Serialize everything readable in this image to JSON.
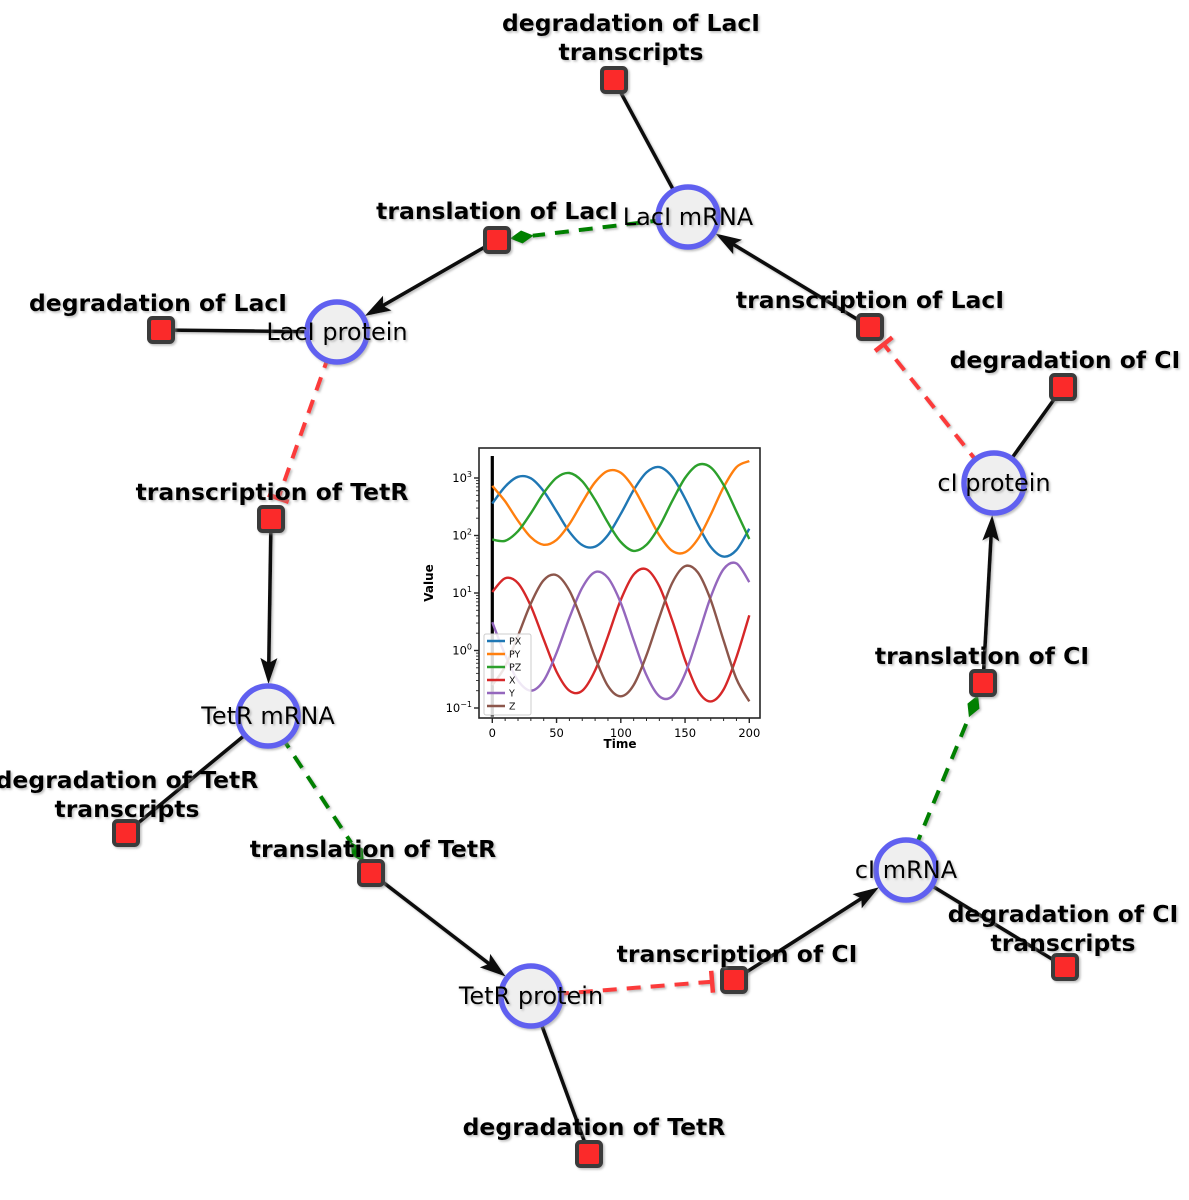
{
  "diagram": {
    "species": [
      {
        "id": "laci_mrna",
        "label": "LacI mRNA"
      },
      {
        "id": "laci_protein",
        "label": "LacI protein"
      },
      {
        "id": "tetr_mrna",
        "label": "TetR mRNA"
      },
      {
        "id": "tetr_protein",
        "label": "TetR protein"
      },
      {
        "id": "ci_mrna",
        "label": "cI mRNA"
      },
      {
        "id": "ci_protein",
        "label": "cI protein"
      }
    ],
    "reactions": [
      {
        "id": "deg_laci_tx",
        "label_lines": [
          "degradation of LacI",
          "transcripts"
        ]
      },
      {
        "id": "transl_laci",
        "label_lines": [
          "translation of LacI"
        ]
      },
      {
        "id": "deg_laci",
        "label_lines": [
          "degradation of LacI"
        ]
      },
      {
        "id": "txn_laci",
        "label_lines": [
          "transcription of LacI"
        ]
      },
      {
        "id": "deg_ci",
        "label_lines": [
          "degradation of CI"
        ]
      },
      {
        "id": "txn_tetr",
        "label_lines": [
          "transcription of TetR"
        ]
      },
      {
        "id": "deg_tetr_tx",
        "label_lines": [
          "degradation of TetR",
          "transcripts"
        ]
      },
      {
        "id": "transl_tetr",
        "label_lines": [
          "translation of TetR"
        ]
      },
      {
        "id": "transl_ci",
        "label_lines": [
          "translation of CI"
        ]
      },
      {
        "id": "txn_ci",
        "label_lines": [
          "transcription of CI"
        ]
      },
      {
        "id": "deg_ci_tx",
        "label_lines": [
          "degradation of CI",
          "transcripts"
        ]
      },
      {
        "id": "deg_tetr",
        "label_lines": [
          "degradation of TetR"
        ]
      }
    ],
    "edges": [
      {
        "from": "laci_mrna",
        "to": "deg_laci_tx",
        "type": "consumption"
      },
      {
        "from": "laci_protein",
        "to": "deg_laci",
        "type": "consumption"
      },
      {
        "from": "ci_protein",
        "to": "deg_ci",
        "type": "consumption"
      },
      {
        "from": "tetr_mrna",
        "to": "deg_tetr_tx",
        "type": "consumption"
      },
      {
        "from": "tetr_protein",
        "to": "deg_tetr",
        "type": "consumption"
      },
      {
        "from": "ci_mrna",
        "to": "deg_ci_tx",
        "type": "consumption"
      },
      {
        "from": "transl_laci",
        "to": "laci_protein",
        "type": "production"
      },
      {
        "from": "txn_laci",
        "to": "laci_mrna",
        "type": "production"
      },
      {
        "from": "transl_ci",
        "to": "ci_protein",
        "type": "production"
      },
      {
        "from": "txn_tetr",
        "to": "tetr_mrna",
        "type": "production"
      },
      {
        "from": "transl_tetr",
        "to": "tetr_protein",
        "type": "production"
      },
      {
        "from": "txn_ci",
        "to": "ci_mrna",
        "type": "production"
      },
      {
        "from": "laci_mrna",
        "to": "transl_laci",
        "type": "modifier"
      },
      {
        "from": "tetr_mrna",
        "to": "transl_tetr",
        "type": "modifier"
      },
      {
        "from": "ci_mrna",
        "to": "transl_ci",
        "type": "modifier"
      },
      {
        "from": "laci_protein",
        "to": "txn_tetr",
        "type": "inhibition"
      },
      {
        "from": "tetr_protein",
        "to": "txn_ci",
        "type": "inhibition"
      },
      {
        "from": "ci_protein",
        "to": "txn_laci",
        "type": "inhibition"
      }
    ],
    "colors": {
      "species_fill": "#efefef",
      "species_stroke": "#6161f0",
      "reaction_fill": "#fb2b2b",
      "reaction_stroke": "#3b3b3b",
      "consumption": "#111111",
      "production": "#111111",
      "modifier": "#008000",
      "inhibition": "#fb3a3a",
      "label": "#000000"
    }
  },
  "chart_data": {
    "type": "line",
    "title": "",
    "xlabel": "Time",
    "ylabel": "Value",
    "x_ticks": [
      0,
      50,
      100,
      150,
      200
    ],
    "y_scale": "log",
    "y_tick_base": "10",
    "y_tick_exponents": [
      "−1",
      "0",
      "1",
      "2",
      "3"
    ],
    "xlim": [
      -10,
      208
    ],
    "ylim_log": [
      -1.18,
      3.52
    ],
    "grid": false,
    "legend_position": "lower left",
    "annotations": [
      {
        "type": "vline",
        "x": 0,
        "color": "#000000"
      }
    ],
    "x": [
      0,
      10,
      20,
      30,
      40,
      50,
      60,
      70,
      80,
      90,
      100,
      110,
      120,
      130,
      140,
      150,
      160,
      170,
      180,
      190,
      200
    ],
    "series": [
      {
        "name": "PX",
        "color": "#1f77b4",
        "values": [
          360,
          710,
          1050,
          990,
          590,
          264,
          116,
          68,
          64,
          102,
          238,
          617,
          1250,
          1550,
          1050,
          442,
          154,
          63,
          43,
          56,
          131
        ]
      },
      {
        "name": "PY",
        "color": "#ff7f0e",
        "values": [
          730,
          391,
          180,
          93,
          69,
          84,
          158,
          378,
          845,
          1330,
          1230,
          669,
          261,
          101,
          54,
          51,
          87,
          232,
          691,
          1550,
          1970
        ]
      },
      {
        "name": "PZ",
        "color": "#2ca02c",
        "values": [
          85,
          81,
          119,
          244,
          550,
          1010,
          1220,
          877,
          416,
          166,
          77,
          54,
          69,
          144,
          396,
          1000,
          1690,
          1530,
          760,
          259,
          87
        ]
      },
      {
        "name": "X",
        "color": "#d62728",
        "values": [
          10.4,
          18.1,
          14.8,
          5.9,
          1.56,
          0.43,
          0.2,
          0.2,
          0.45,
          1.78,
          7.6,
          20.9,
          25.8,
          13.0,
          3.35,
          0.69,
          0.2,
          0.13,
          0.21,
          0.77,
          4.1
        ]
      },
      {
        "name": "Y",
        "color": "#9467bd",
        "values": [
          3.1,
          0.84,
          0.3,
          0.2,
          0.3,
          0.91,
          3.7,
          12.4,
          23.1,
          18.3,
          6.7,
          1.52,
          0.37,
          0.16,
          0.16,
          0.39,
          1.76,
          8.6,
          26.0,
          32.7,
          15.5
        ]
      },
      {
        "name": "Z",
        "color": "#8c564b",
        "values": [
          0.25,
          0.53,
          1.8,
          6.6,
          16.7,
          20.4,
          11.0,
          3.2,
          0.76,
          0.24,
          0.16,
          0.25,
          0.83,
          3.8,
          14.9,
          29.3,
          22.7,
          7.5,
          1.49,
          0.32,
          0.13
        ]
      }
    ]
  }
}
